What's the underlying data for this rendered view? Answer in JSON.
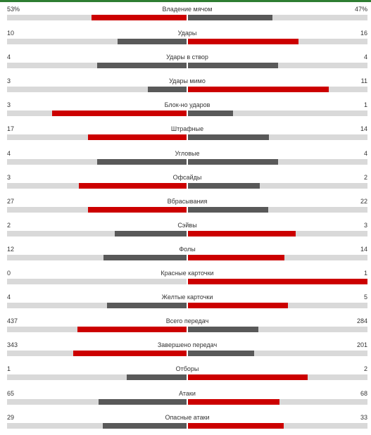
{
  "colors": {
    "leader": "#cc0000",
    "other": "#595959",
    "track": "#d9d9d9",
    "strip": "#2e7d32"
  },
  "stats": [
    {
      "label": "Владение мячом",
      "left": "53%",
      "right": "47%",
      "left_value": 53,
      "right_value": 47
    },
    {
      "label": "Удары",
      "left": "10",
      "right": "16",
      "left_value": 10,
      "right_value": 16
    },
    {
      "label": "Удары в створ",
      "left": "4",
      "right": "4",
      "left_value": 4,
      "right_value": 4
    },
    {
      "label": "Удары мимо",
      "left": "3",
      "right": "11",
      "left_value": 3,
      "right_value": 11
    },
    {
      "label": "Блок-но ударов",
      "left": "3",
      "right": "1",
      "left_value": 3,
      "right_value": 1
    },
    {
      "label": "Штрафные",
      "left": "17",
      "right": "14",
      "left_value": 17,
      "right_value": 14
    },
    {
      "label": "Угловые",
      "left": "4",
      "right": "4",
      "left_value": 4,
      "right_value": 4
    },
    {
      "label": "Офсайды",
      "left": "3",
      "right": "2",
      "left_value": 3,
      "right_value": 2
    },
    {
      "label": "Вбрасывания",
      "left": "27",
      "right": "22",
      "left_value": 27,
      "right_value": 22
    },
    {
      "label": "Сэйвы",
      "left": "2",
      "right": "3",
      "left_value": 2,
      "right_value": 3
    },
    {
      "label": "Фолы",
      "left": "12",
      "right": "14",
      "left_value": 12,
      "right_value": 14
    },
    {
      "label": "Красные карточки",
      "left": "0",
      "right": "1",
      "left_value": 0,
      "right_value": 1
    },
    {
      "label": "Желтые карточки",
      "left": "4",
      "right": "5",
      "left_value": 4,
      "right_value": 5
    },
    {
      "label": "Всего передач",
      "left": "437",
      "right": "284",
      "left_value": 437,
      "right_value": 284
    },
    {
      "label": "Завершено передач",
      "left": "343",
      "right": "201",
      "left_value": 343,
      "right_value": 201
    },
    {
      "label": "Отборы",
      "left": "1",
      "right": "2",
      "left_value": 1,
      "right_value": 2
    },
    {
      "label": "Атаки",
      "left": "65",
      "right": "68",
      "left_value": 65,
      "right_value": 68
    },
    {
      "label": "Опасные атаки",
      "left": "29",
      "right": "33",
      "left_value": 29,
      "right_value": 33
    }
  ]
}
